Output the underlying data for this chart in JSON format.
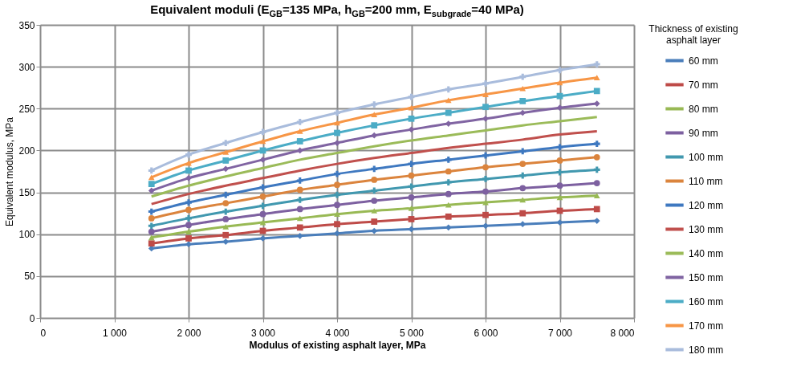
{
  "chart_data": {
    "type": "line",
    "title": "Equivalent moduli (E$_{GB}$=135 MPa, h$_{GB}$=200 mm, E$_{subgrade}$=40 MPa)",
    "xlabel": "Modulus of existing asphalt layer, MPa",
    "ylabel": "Equivalent modulus, MPa",
    "legend_title": "Thickness of existing asphalt layer",
    "x": [
      1500,
      2000,
      2500,
      3000,
      3500,
      4000,
      4500,
      5000,
      5500,
      6000,
      6500,
      7000,
      7500
    ],
    "xlim": [
      0,
      8000
    ],
    "xticks": [
      0,
      {
        "value": 1000,
        "label": "1 000"
      },
      {
        "value": 2000,
        "label": "2 000"
      },
      {
        "value": 3000,
        "label": "3 000"
      },
      {
        "value": 4000,
        "label": "4 000"
      },
      {
        "value": 5000,
        "label": "5 000"
      },
      {
        "value": 6000,
        "label": "6 000"
      },
      {
        "value": 7000,
        "label": "7 000"
      },
      {
        "value": 8000,
        "label": "8 000"
      }
    ],
    "ylim": [
      0,
      350
    ],
    "yticks": [
      0,
      50,
      100,
      150,
      200,
      250,
      300,
      350
    ],
    "grid": true,
    "legend": "right",
    "series": [
      {
        "name": "60 mm",
        "color": "#4a7ebb",
        "marker": "diamond",
        "values": [
          83,
          88,
          91,
          95,
          98,
          101,
          104,
          106,
          108,
          110,
          112,
          114,
          116
        ]
      },
      {
        "name": "70 mm",
        "color": "#be4b48",
        "marker": "square",
        "values": [
          89,
          95,
          99,
          104,
          108,
          112,
          115,
          118,
          121,
          123,
          125,
          128,
          130
        ]
      },
      {
        "name": "80 mm",
        "color": "#98b954",
        "marker": "triangle",
        "values": [
          96,
          103,
          109,
          114,
          119,
          124,
          128,
          131,
          135,
          138,
          141,
          144,
          146
        ]
      },
      {
        "name": "90 mm",
        "color": "#7d60a0",
        "marker": "circle",
        "values": [
          103,
          111,
          118,
          124,
          130,
          135,
          140,
          144,
          148,
          151,
          155,
          158,
          161
        ]
      },
      {
        "name": "100 mm",
        "color": "#4198af",
        "marker": "cross",
        "values": [
          110,
          119,
          127,
          134,
          141,
          147,
          152,
          157,
          162,
          166,
          170,
          174,
          177
        ]
      },
      {
        "name": "110 mm",
        "color": "#db843d",
        "marker": "circle",
        "values": [
          119,
          129,
          137,
          145,
          153,
          159,
          165,
          170,
          175,
          180,
          184,
          188,
          192
        ]
      },
      {
        "name": "120 mm",
        "color": "#3e78c0",
        "marker": "cross",
        "values": [
          127,
          138,
          147,
          156,
          164,
          172,
          178,
          184,
          189,
          194,
          199,
          204,
          208
        ]
      },
      {
        "name": "130 mm",
        "color": "#c0504d",
        "marker": "none",
        "values": [
          136,
          148,
          158,
          167,
          176,
          184,
          191,
          197,
          203,
          208,
          213,
          219,
          223
        ]
      },
      {
        "name": "140 mm",
        "color": "#9bbb59",
        "marker": "none",
        "values": [
          145,
          158,
          169,
          179,
          189,
          197,
          205,
          212,
          218,
          224,
          230,
          235,
          240
        ]
      },
      {
        "name": "150 mm",
        "color": "#8064a2",
        "marker": "diamond",
        "values": [
          152,
          167,
          178,
          189,
          200,
          209,
          218,
          225,
          232,
          238,
          245,
          251,
          256
        ]
      },
      {
        "name": "160 mm",
        "color": "#4bacc6",
        "marker": "square",
        "values": [
          160,
          176,
          188,
          200,
          211,
          221,
          230,
          238,
          245,
          252,
          259,
          265,
          271
        ]
      },
      {
        "name": "170 mm",
        "color": "#f79646",
        "marker": "triangle",
        "values": [
          168,
          185,
          198,
          211,
          223,
          233,
          243,
          251,
          260,
          267,
          274,
          281,
          287
        ]
      },
      {
        "name": "180 mm",
        "color": "#a9bcdc",
        "marker": "cross",
        "values": [
          176,
          195,
          209,
          222,
          234,
          245,
          255,
          264,
          273,
          280,
          288,
          296,
          303
        ]
      }
    ]
  }
}
